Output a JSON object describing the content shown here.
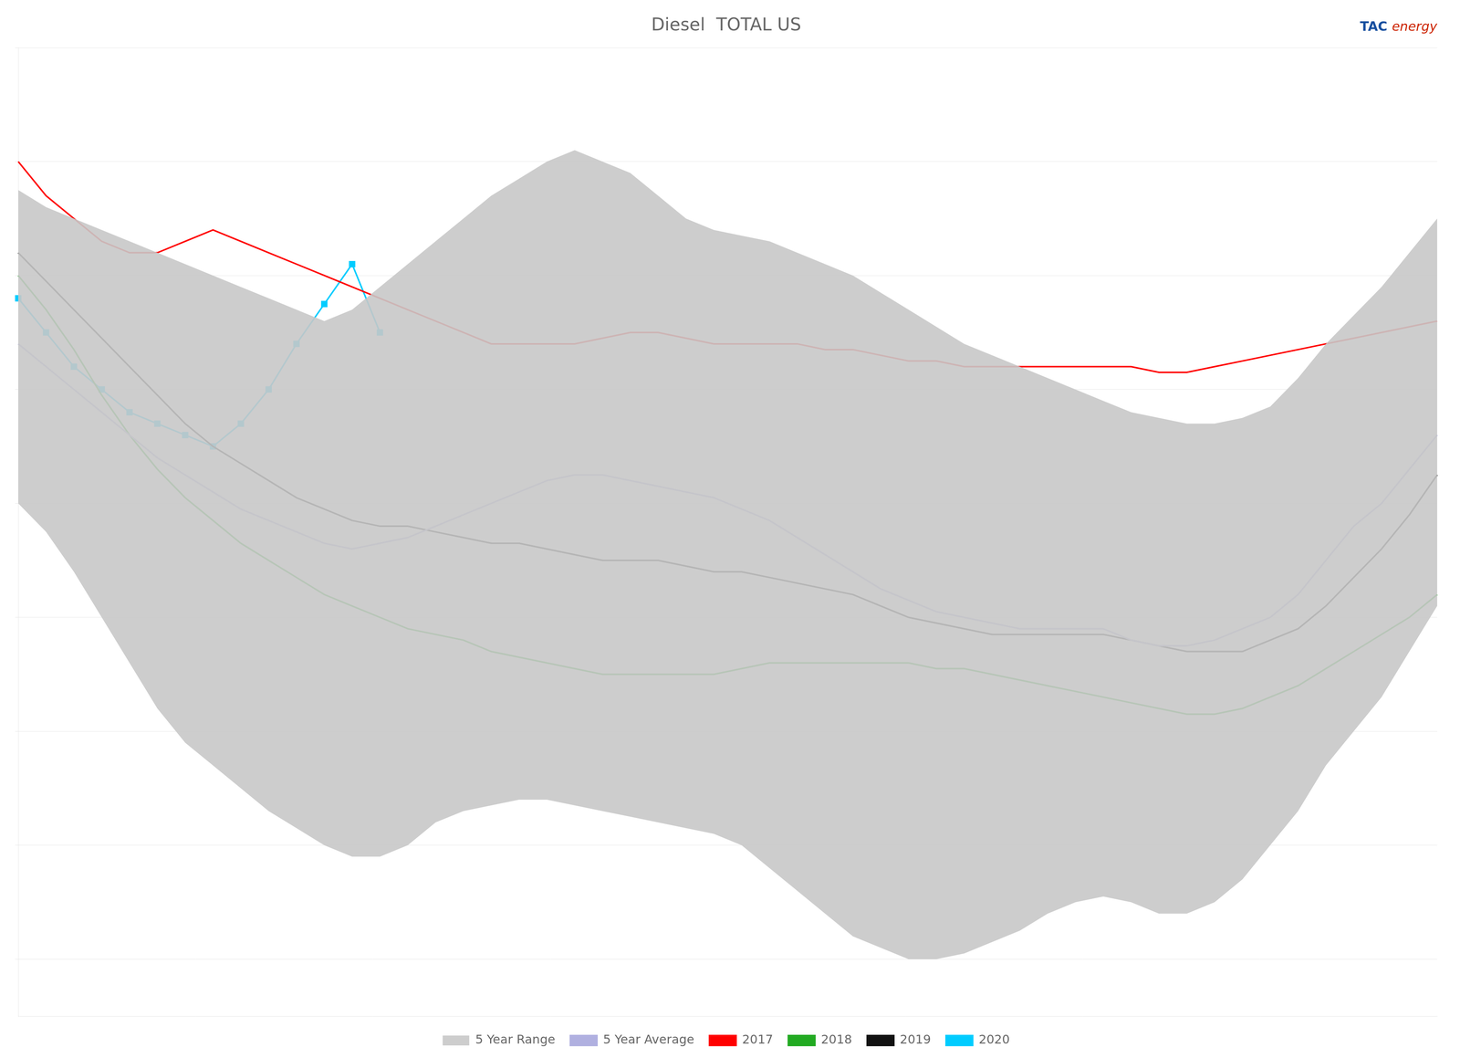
{
  "chart_data": {
    "type": "line",
    "title": "Diesel  TOTAL US",
    "annotations": [
      {
        "text": "TAC",
        "color": "#1850a0"
      },
      {
        "text": "energy",
        "color": "#cc2200"
      }
    ],
    "categories": [
      null,
      null,
      null,
      null,
      null,
      null,
      null,
      null,
      null,
      null,
      null,
      null,
      null,
      null,
      null,
      null,
      null,
      null,
      null,
      null,
      null,
      null,
      null,
      null,
      null,
      null,
      null,
      null,
      null,
      null,
      null,
      null,
      null,
      null,
      null,
      null,
      null,
      null,
      null,
      null,
      null,
      null,
      null,
      null,
      null,
      null,
      null,
      null,
      null,
      null,
      null,
      null
    ],
    "series": [
      {
        "name": "5 Year Range",
        "type": "range",
        "color": "#c8c8c8",
        "upper": [
          2.55,
          2.52,
          2.5,
          2.48,
          2.46,
          2.44,
          2.42,
          2.4,
          2.38,
          2.36,
          2.34,
          2.32,
          2.34,
          2.38,
          2.42,
          2.46,
          2.5,
          2.54,
          2.57,
          2.6,
          2.62,
          2.6,
          2.58,
          2.54,
          2.5,
          2.48,
          2.47,
          2.46,
          2.44,
          2.42,
          2.4,
          2.37,
          2.34,
          2.31,
          2.28,
          2.26,
          2.24,
          2.22,
          2.2,
          2.18,
          2.16,
          2.15,
          2.14,
          2.14,
          2.15,
          2.17,
          2.22,
          2.28,
          2.33,
          2.38,
          2.44,
          2.5
        ],
        "lower": [
          2.0,
          1.95,
          1.88,
          1.8,
          1.72,
          1.64,
          1.58,
          1.54,
          1.5,
          1.46,
          1.43,
          1.4,
          1.38,
          1.38,
          1.4,
          1.44,
          1.46,
          1.47,
          1.48,
          1.48,
          1.47,
          1.46,
          1.45,
          1.44,
          1.43,
          1.42,
          1.4,
          1.36,
          1.32,
          1.28,
          1.24,
          1.22,
          1.2,
          1.2,
          1.21,
          1.23,
          1.25,
          1.28,
          1.3,
          1.31,
          1.3,
          1.28,
          1.28,
          1.3,
          1.34,
          1.4,
          1.46,
          1.54,
          1.6,
          1.66,
          1.74,
          1.82
        ]
      },
      {
        "name": "5 Year Average",
        "color": "#b0b0e0",
        "values": [
          2.28,
          2.24,
          2.2,
          2.16,
          2.12,
          2.08,
          2.05,
          2.02,
          1.99,
          1.97,
          1.95,
          1.93,
          1.92,
          1.93,
          1.94,
          1.96,
          1.98,
          2.0,
          2.02,
          2.04,
          2.05,
          2.05,
          2.04,
          2.03,
          2.02,
          2.01,
          1.99,
          1.97,
          1.94,
          1.91,
          1.88,
          1.85,
          1.83,
          1.81,
          1.8,
          1.79,
          1.78,
          1.78,
          1.78,
          1.78,
          1.76,
          1.75,
          1.75,
          1.76,
          1.78,
          1.8,
          1.84,
          1.9,
          1.96,
          2.0,
          2.06,
          2.12
        ]
      },
      {
        "name": "2017",
        "color": "#ff0000",
        "values": [
          2.6,
          2.54,
          2.5,
          2.46,
          2.44,
          2.44,
          2.46,
          2.48,
          2.46,
          2.44,
          2.42,
          2.4,
          2.38,
          2.36,
          2.34,
          2.32,
          2.3,
          2.28,
          2.28,
          2.28,
          2.28,
          2.29,
          2.3,
          2.3,
          2.29,
          2.28,
          2.28,
          2.28,
          2.28,
          2.27,
          2.27,
          2.26,
          2.25,
          2.25,
          2.24,
          2.24,
          2.24,
          2.24,
          2.24,
          2.24,
          2.24,
          2.23,
          2.23,
          2.24,
          2.25,
          2.26,
          2.27,
          2.28,
          2.29,
          2.3,
          2.31,
          2.32
        ]
      },
      {
        "name": "2018",
        "color": "#22aa22",
        "values": [
          2.4,
          2.34,
          2.27,
          2.19,
          2.12,
          2.06,
          2.01,
          1.97,
          1.93,
          1.9,
          1.87,
          1.84,
          1.82,
          1.8,
          1.78,
          1.77,
          1.76,
          1.74,
          1.73,
          1.72,
          1.71,
          1.7,
          1.7,
          1.7,
          1.7,
          1.7,
          1.71,
          1.72,
          1.72,
          1.72,
          1.72,
          1.72,
          1.72,
          1.71,
          1.71,
          1.7,
          1.69,
          1.68,
          1.67,
          1.66,
          1.65,
          1.64,
          1.63,
          1.63,
          1.64,
          1.66,
          1.68,
          1.71,
          1.74,
          1.77,
          1.8,
          1.84
        ]
      },
      {
        "name": "2019",
        "color": "#111111",
        "values": [
          2.44,
          2.39,
          2.34,
          2.29,
          2.24,
          2.19,
          2.14,
          2.1,
          2.07,
          2.04,
          2.01,
          1.99,
          1.97,
          1.96,
          1.96,
          1.95,
          1.94,
          1.93,
          1.93,
          1.92,
          1.91,
          1.9,
          1.9,
          1.9,
          1.89,
          1.88,
          1.88,
          1.87,
          1.86,
          1.85,
          1.84,
          1.82,
          1.8,
          1.79,
          1.78,
          1.77,
          1.77,
          1.77,
          1.77,
          1.77,
          1.76,
          1.75,
          1.74,
          1.74,
          1.74,
          1.76,
          1.78,
          1.82,
          1.87,
          1.92,
          1.98,
          2.05
        ]
      },
      {
        "name": "2020",
        "color": "#00ccff",
        "marker": "square",
        "values": [
          2.36,
          2.3,
          2.24,
          2.2,
          2.16,
          2.14,
          2.12,
          2.1,
          2.14,
          2.2,
          2.28,
          2.35,
          2.42,
          2.3,
          null,
          null,
          null,
          null,
          null,
          null,
          null,
          null,
          null,
          null,
          null,
          null,
          null,
          null,
          null,
          null,
          null,
          null,
          null,
          null,
          null,
          null,
          null,
          null,
          null,
          null,
          null,
          null,
          null,
          null,
          null,
          null,
          null,
          null,
          null,
          null,
          null,
          null
        ]
      }
    ],
    "ylim": [
      1.1,
      2.8
    ],
    "yticks": [
      1.2,
      1.4,
      1.6,
      1.8,
      2.0,
      2.2,
      2.4,
      2.6,
      2.8
    ],
    "grid": true,
    "legend": "bottom",
    "tick_labels": false
  }
}
